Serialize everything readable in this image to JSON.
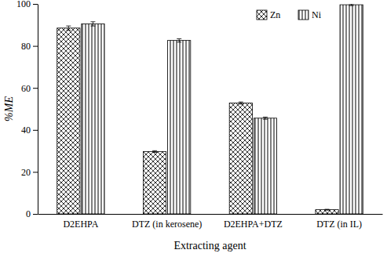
{
  "chart_data": {
    "type": "bar",
    "x_label": "Extracting agent",
    "y_label": "%ME",
    "categories": [
      "D2EHPA",
      "DTZ (in kerosene)",
      "D2EHPA+DTZ",
      "DTZ (in IL)"
    ],
    "series": [
      {
        "name": "Zn",
        "color": "#000000",
        "values": [
          88.5,
          29.7,
          52.8,
          2.0
        ],
        "errors": [
          1.0,
          0.4,
          0.5,
          0.2
        ]
      },
      {
        "name": "Ni",
        "color": "#000000",
        "values": [
          90.5,
          82.6,
          45.6,
          99.6
        ],
        "errors": [
          1.0,
          0.8,
          0.5,
          0.4
        ]
      }
    ],
    "ylim": [
      0,
      100
    ],
    "yticks": [
      0,
      20,
      40,
      60,
      80,
      100
    ],
    "grid": false,
    "legend": "top-right"
  }
}
